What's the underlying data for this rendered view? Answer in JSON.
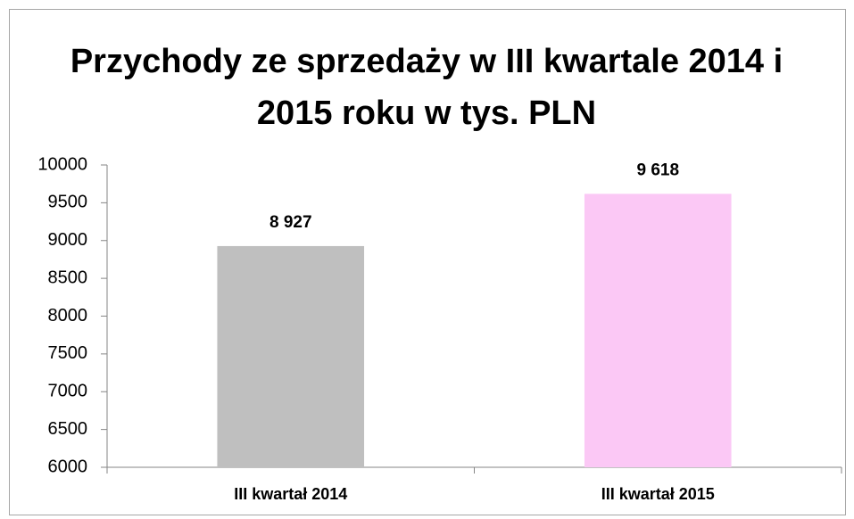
{
  "chart_data": {
    "type": "bar",
    "title": "Przychody ze sprzedaży w III kwartale 2014 i 2015 roku w tys. PLN",
    "categories": [
      "III kwartał 2014",
      "III kwartał 2015"
    ],
    "values": [
      8927,
      9618
    ],
    "value_labels": [
      "8 927",
      "9 618"
    ],
    "colors": [
      "#bfbfbf",
      "#fbc8f5"
    ],
    "ylim": [
      6000,
      10000
    ],
    "yticks": [
      6000,
      6500,
      7000,
      7500,
      8000,
      8500,
      9000,
      9500,
      10000
    ],
    "grid": false
  }
}
